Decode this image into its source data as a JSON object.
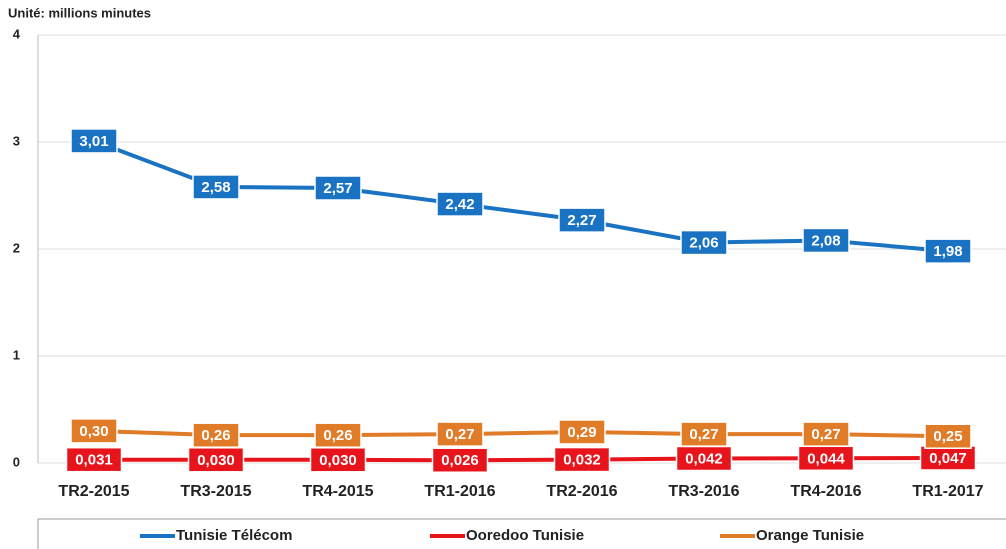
{
  "chart_data": {
    "type": "line",
    "ylabel": "Unité: millions minutes",
    "categories": [
      "TR2-2015",
      "TR3-2015",
      "TR4-2015",
      "TR1-2016",
      "TR2-2016",
      "TR3-2016",
      "TR4-2016",
      "TR1-2017"
    ],
    "series": [
      {
        "name": "Tunisie Télécom",
        "color": "#1a73c2",
        "values": [
          3.01,
          2.58,
          2.57,
          2.42,
          2.27,
          2.06,
          2.08,
          1.98
        ],
        "value_labels": [
          "3,01",
          "2,58",
          "2,57",
          "2,42",
          "2,27",
          "2,06",
          "2,08",
          "1,98"
        ]
      },
      {
        "name": "Ooredoo Tunisie",
        "color": "#e8141b",
        "values": [
          0.031,
          0.03,
          0.03,
          0.026,
          0.032,
          0.042,
          0.044,
          0.047
        ],
        "value_labels": [
          "0,031",
          "0,030",
          "0,030",
          "0,026",
          "0,032",
          "0,042",
          "0,044",
          "0,047"
        ]
      },
      {
        "name": "Orange Tunisie",
        "color": "#e07b28",
        "values": [
          0.3,
          0.26,
          0.26,
          0.27,
          0.29,
          0.27,
          0.27,
          0.25
        ],
        "value_labels": [
          "0,30",
          "0,26",
          "0,26",
          "0,27",
          "0,29",
          "0,27",
          "0,27",
          "0,25"
        ]
      }
    ],
    "ylim": [
      0,
      4
    ],
    "yticks": [
      0,
      1,
      2,
      3,
      4
    ],
    "grid": true,
    "legend": "bottom"
  }
}
